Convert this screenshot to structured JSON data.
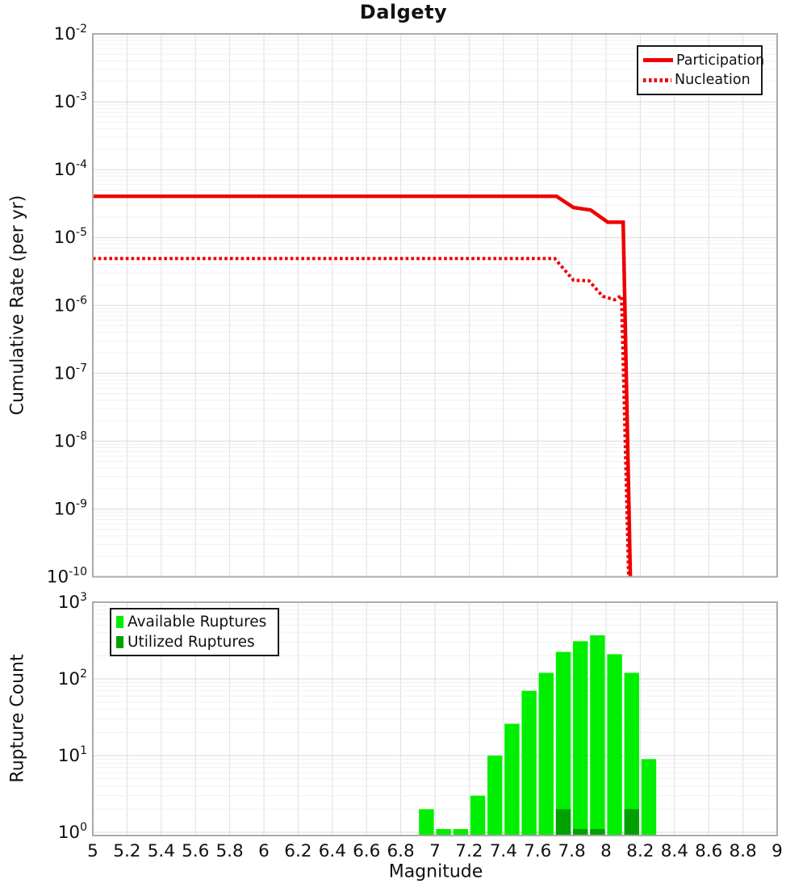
{
  "page": {
    "title": "Dalgety"
  },
  "colors": {
    "line_red": "#ee0000",
    "available_green": "#00ef00",
    "utilized_green": "#00a000",
    "grid_major": "#d9d9d9",
    "grid_minor": "#f0f0f0",
    "grid_vertical": "#dedede",
    "frame_gray": "#ababab",
    "text": "#111111"
  },
  "chart_data": [
    {
      "type": "line",
      "title": "Dalgety",
      "ylabel": "Cumulative Rate (per yr)",
      "xlabel": "",
      "xlim": [
        5,
        9
      ],
      "ylim": [
        1e-10,
        0.01
      ],
      "yscale": "log",
      "grid": true,
      "legend_position": "top-right",
      "y_tick_base": "10",
      "y_tick_exponents": [
        -2,
        -3,
        -4,
        -5,
        -6,
        -7,
        -8,
        -9,
        -10
      ],
      "series": [
        {
          "name": "Participation",
          "style": "solid",
          "color": "#ee0000",
          "points": [
            [
              5.0,
              4.05e-05
            ],
            [
              7.71,
              4.05e-05
            ],
            [
              7.81,
              2.76e-05
            ],
            [
              7.91,
              2.54e-05
            ],
            [
              8.01,
              1.68e-05
            ],
            [
              8.1,
              1.68e-05
            ],
            [
              8.142,
              1e-10
            ]
          ]
        },
        {
          "name": "Nucleation",
          "style": "dotted",
          "color": "#ee0000",
          "points": [
            [
              5.0,
              4.9e-06
            ],
            [
              7.7,
              4.9e-06
            ],
            [
              7.81,
              2.34e-06
            ],
            [
              7.9,
              2.3e-06
            ],
            [
              7.98,
              1.36e-06
            ],
            [
              8.05,
              1.21e-06
            ],
            [
              8.09,
              1.39e-06
            ],
            [
              8.132,
              1e-10
            ]
          ]
        }
      ]
    },
    {
      "type": "bar",
      "title": "",
      "ylabel": "Rupture Count",
      "xlabel": "Magnitude",
      "xlim": [
        5,
        9
      ],
      "ylim": [
        1,
        1000
      ],
      "yscale": "log",
      "grid": true,
      "bin_width": 0.1,
      "legend_position": "top-left",
      "x_ticks": [
        "5",
        "5.2",
        "5.4",
        "5.6",
        "5.8",
        "6",
        "6.2",
        "6.4",
        "6.6",
        "6.8",
        "7",
        "7.2",
        "7.4",
        "7.6",
        "7.8",
        "8",
        "8.2",
        "8.4",
        "8.6",
        "8.8",
        "9"
      ],
      "y_tick_base": "10",
      "y_tick_exponents": [
        3,
        2,
        1,
        0
      ],
      "series": [
        {
          "name": "Available Ruptures",
          "color": "#00ef00",
          "bins": [
            [
              6.9,
              2
            ],
            [
              7.0,
              1
            ],
            [
              7.1,
              1
            ],
            [
              7.2,
              3
            ],
            [
              7.3,
              10
            ],
            [
              7.4,
              26
            ],
            [
              7.5,
              70
            ],
            [
              7.6,
              120
            ],
            [
              7.7,
              225
            ],
            [
              7.8,
              310
            ],
            [
              7.9,
              370
            ],
            [
              8.0,
              210
            ],
            [
              8.1,
              120
            ],
            [
              8.2,
              9
            ]
          ]
        },
        {
          "name": "Utilized Ruptures",
          "color": "#00a000",
          "bins": [
            [
              7.7,
              2
            ],
            [
              7.8,
              1
            ],
            [
              7.9,
              1
            ],
            [
              8.1,
              2
            ]
          ]
        }
      ]
    }
  ]
}
